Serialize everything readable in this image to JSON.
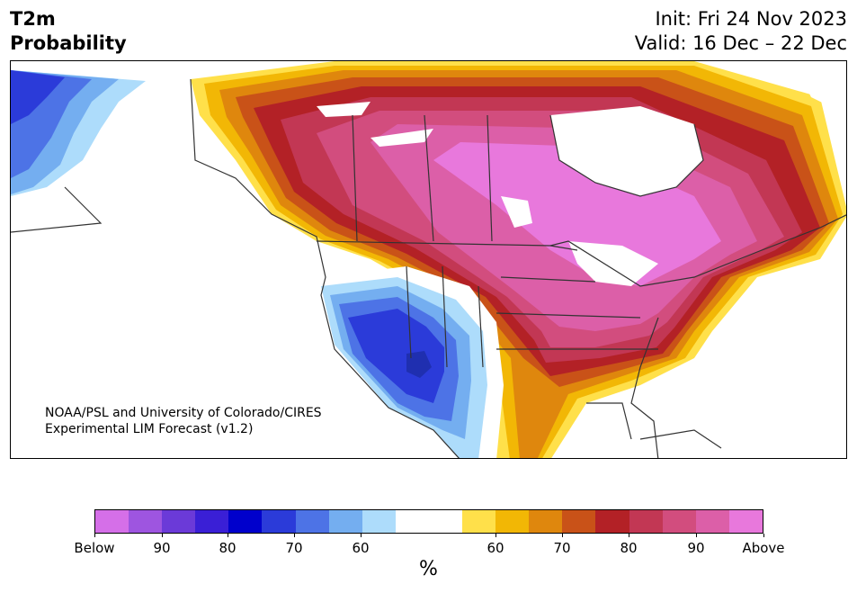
{
  "title": {
    "line1": "T2m",
    "line2": "Probability"
  },
  "init_text": "Init: Fri 24 Nov 2023",
  "valid_text": "Valid: 16 Dec – 22 Dec",
  "credit": {
    "line1": "NOAA/PSL and University of Colorado/CIRES",
    "line2": "Experimental LIM Forecast (v1.2)"
  },
  "colorbar": {
    "unit": "%",
    "colors": [
      "#d56fe8",
      "#9e55e0",
      "#6b3ad8",
      "#3a1fd6",
      "#0000cc",
      "#2b3bd9",
      "#4d73e6",
      "#74aef0",
      "#addcfb",
      "#ffffff",
      "#ffffff",
      "#ffe04a",
      "#f2b705",
      "#df870d",
      "#c95218",
      "#b32126",
      "#c23754",
      "#d24d7e",
      "#dc5fa8",
      "#e878dc"
    ],
    "tick_labels": [
      "Below",
      "90",
      "80",
      "70",
      "60",
      "60",
      "70",
      "80",
      "90",
      "Above"
    ]
  },
  "map_colors": {
    "land": "#ffffff",
    "border": "#333333",
    "above_ramp": [
      "#ffe04a",
      "#f2b705",
      "#df870d",
      "#c95218",
      "#b32126",
      "#c23754",
      "#d24d7e",
      "#dc5fa8",
      "#e878dc"
    ],
    "below_ramp": [
      "#addcfb",
      "#74aef0",
      "#4d73e6",
      "#2b3bd9",
      "#1f2fb0"
    ]
  }
}
